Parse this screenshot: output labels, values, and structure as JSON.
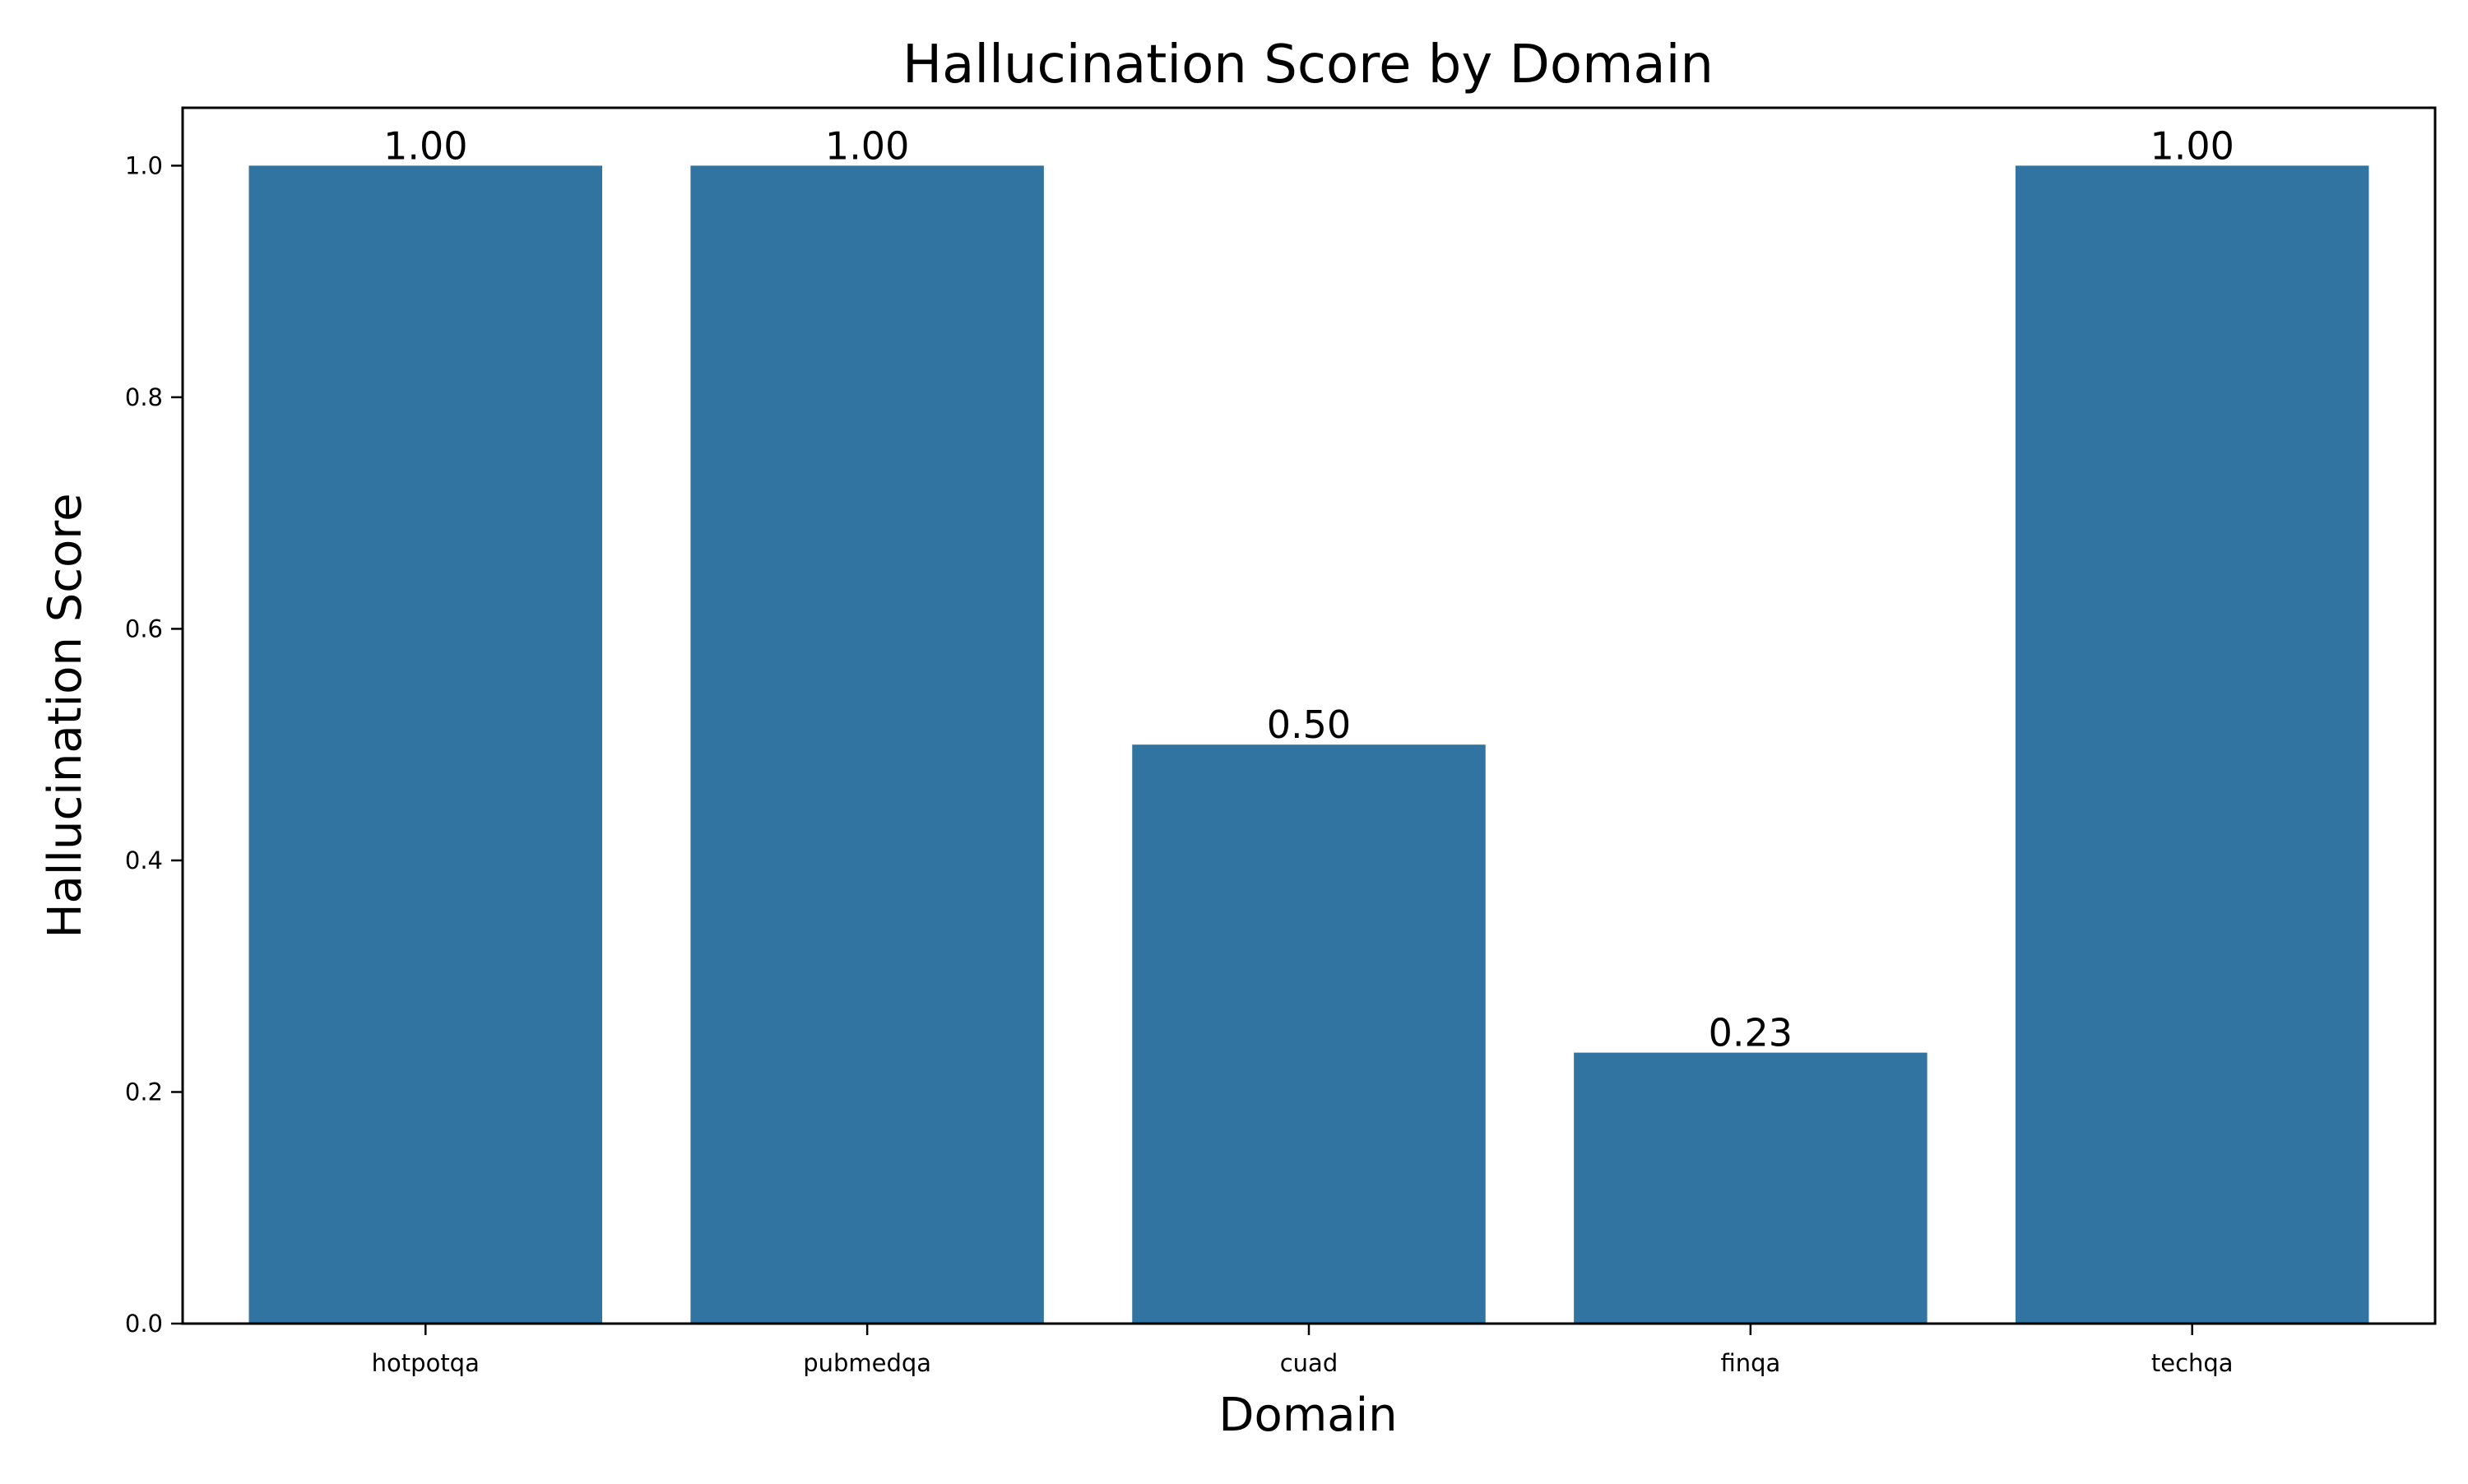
{
  "chart_data": {
    "type": "bar",
    "title": "Hallucination Score by Domain",
    "xlabel": "Domain",
    "ylabel": "Hallucination Score",
    "categories": [
      "hotpotqa",
      "pubmedqa",
      "cuad",
      "finqa",
      "techqa"
    ],
    "values": [
      1.0,
      1.0,
      0.5,
      0.234,
      1.0
    ],
    "value_labels": [
      "1.00",
      "1.00",
      "0.50",
      "0.23",
      "1.00"
    ],
    "ylim": [
      0,
      1.05
    ],
    "yticks": [
      0.0,
      0.2,
      0.4,
      0.6,
      0.8,
      1.0
    ],
    "ytick_labels": [
      "0.0",
      "0.2",
      "0.4",
      "0.6",
      "0.8",
      "1.0"
    ],
    "grid": false,
    "colors": {
      "bar": "#3274a1",
      "axis": "#000000",
      "background": "#ffffff"
    }
  }
}
